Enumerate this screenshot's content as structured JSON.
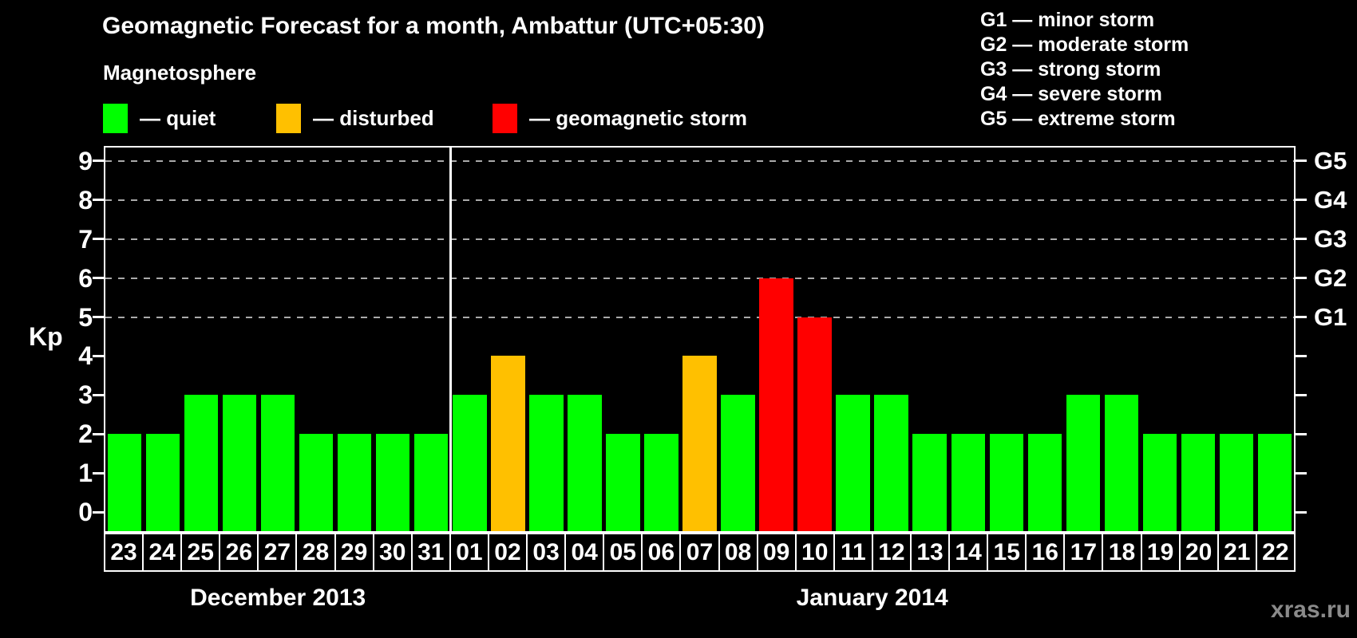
{
  "header": {
    "title": "Geomagnetic Forecast for a month, Ambattur (UTC+05:30)"
  },
  "legend": {
    "title": "Magnetosphere",
    "items": [
      {
        "status": "quiet",
        "label": "— quiet"
      },
      {
        "status": "disturbed",
        "label": "— disturbed"
      },
      {
        "status": "storm",
        "label": "— geomagnetic storm"
      }
    ]
  },
  "g_legend": {
    "lines": [
      "G1 — minor storm",
      "G2 — moderate storm",
      "G3 — strong storm",
      "G4 — severe storm",
      "G5 — extreme storm"
    ]
  },
  "colors": {
    "quiet": "#00ff00",
    "disturbed": "#ffc000",
    "storm": "#ff0000",
    "grid": "#aaaaaa",
    "axis": "#ffffff",
    "watermark": "#8a8a8a"
  },
  "watermark": "xras.ru",
  "chart_data": {
    "type": "bar",
    "title": "Geomagnetic Forecast for a month, Ambattur (UTC+05:30)",
    "xlabel": "",
    "ylabel": "Kp",
    "ylim": [
      0,
      9
    ],
    "y_ticks": [
      0,
      1,
      2,
      3,
      4,
      5,
      6,
      7,
      8,
      9
    ],
    "gridline_levels": [
      5,
      6,
      7,
      8,
      9
    ],
    "grid": "dashed horizontal lines at Kp 5-9 only",
    "legend_position": "top-left",
    "right_axis_labels": [
      {
        "label": "G1",
        "kp": 5
      },
      {
        "label": "G2",
        "kp": 6
      },
      {
        "label": "G3",
        "kp": 7
      },
      {
        "label": "G4",
        "kp": 8
      },
      {
        "label": "G5",
        "kp": 9
      }
    ],
    "months": [
      {
        "label": "December 2013",
        "start": 0,
        "count": 9
      },
      {
        "label": "January 2014",
        "start": 9,
        "count": 22
      }
    ],
    "bars": [
      {
        "day": "23",
        "kp": 2,
        "status": "quiet"
      },
      {
        "day": "24",
        "kp": 2,
        "status": "quiet"
      },
      {
        "day": "25",
        "kp": 3,
        "status": "quiet"
      },
      {
        "day": "26",
        "kp": 3,
        "status": "quiet"
      },
      {
        "day": "27",
        "kp": 3,
        "status": "quiet"
      },
      {
        "day": "28",
        "kp": 2,
        "status": "quiet"
      },
      {
        "day": "29",
        "kp": 2,
        "status": "quiet"
      },
      {
        "day": "30",
        "kp": 2,
        "status": "quiet"
      },
      {
        "day": "31",
        "kp": 2,
        "status": "quiet"
      },
      {
        "day": "01",
        "kp": 3,
        "status": "quiet"
      },
      {
        "day": "02",
        "kp": 4,
        "status": "disturbed"
      },
      {
        "day": "03",
        "kp": 3,
        "status": "quiet"
      },
      {
        "day": "04",
        "kp": 3,
        "status": "quiet"
      },
      {
        "day": "05",
        "kp": 2,
        "status": "quiet"
      },
      {
        "day": "06",
        "kp": 2,
        "status": "quiet"
      },
      {
        "day": "07",
        "kp": 4,
        "status": "disturbed"
      },
      {
        "day": "08",
        "kp": 3,
        "status": "quiet"
      },
      {
        "day": "09",
        "kp": 6,
        "status": "storm"
      },
      {
        "day": "10",
        "kp": 5,
        "status": "storm"
      },
      {
        "day": "11",
        "kp": 3,
        "status": "quiet"
      },
      {
        "day": "12",
        "kp": 3,
        "status": "quiet"
      },
      {
        "day": "13",
        "kp": 2,
        "status": "quiet"
      },
      {
        "day": "14",
        "kp": 2,
        "status": "quiet"
      },
      {
        "day": "15",
        "kp": 2,
        "status": "quiet"
      },
      {
        "day": "16",
        "kp": 2,
        "status": "quiet"
      },
      {
        "day": "17",
        "kp": 3,
        "status": "quiet"
      },
      {
        "day": "18",
        "kp": 3,
        "status": "quiet"
      },
      {
        "day": "19",
        "kp": 2,
        "status": "quiet"
      },
      {
        "day": "20",
        "kp": 2,
        "status": "quiet"
      },
      {
        "day": "21",
        "kp": 2,
        "status": "quiet"
      },
      {
        "day": "22",
        "kp": 2,
        "status": "quiet"
      }
    ]
  }
}
